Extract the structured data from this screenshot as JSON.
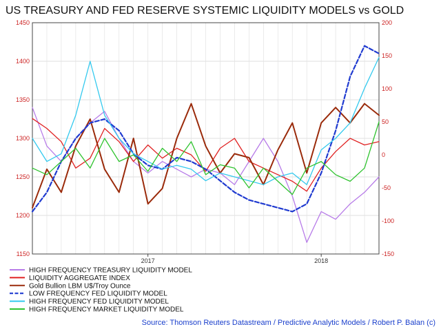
{
  "chart_data": {
    "type": "line",
    "title": "US TREASURY AND FED RESERVE SYSTEMIC LIQUIDITY MODELS vs GOLD",
    "source": "Source: Thomson Reuters Datastream / Predictive Analytic Models  / Robert P. Balan (c)",
    "x_range": [
      "2016-05",
      "2018-05"
    ],
    "x_ticks": [
      {
        "label": "2017",
        "date": "2017-01"
      },
      {
        "label": "2018",
        "date": "2018-01"
      }
    ],
    "y_left": {
      "range": [
        1150,
        1450
      ],
      "ticks": [
        "1150",
        "1200",
        "1250",
        "1300",
        "1350",
        "1400",
        "1450"
      ],
      "color": "#cc2222"
    },
    "y_right": {
      "range": [
        -150,
        200
      ],
      "ticks": [
        "-150",
        "-100",
        "-50",
        "0",
        "50",
        "100",
        "150",
        "200"
      ],
      "color": "#cc2222"
    },
    "grid": true,
    "legend_position": "bottom-left",
    "series": [
      {
        "name": "HIGH FREQUENCY TREASURY LIQUIDITY MODEL",
        "color": "#b77be8",
        "dash": false,
        "width": 1.3,
        "axis": "left",
        "points": [
          [
            "2016-05",
            1340
          ],
          [
            "2016-06",
            1290
          ],
          [
            "2016-07",
            1270
          ],
          [
            "2016-08",
            1300
          ],
          [
            "2016-09",
            1320
          ],
          [
            "2016-10",
            1335
          ],
          [
            "2016-11",
            1300
          ],
          [
            "2016-12",
            1270
          ],
          [
            "2017-01",
            1255
          ],
          [
            "2017-02",
            1270
          ],
          [
            "2017-03",
            1260
          ],
          [
            "2017-04",
            1250
          ],
          [
            "2017-05",
            1260
          ],
          [
            "2017-06",
            1255
          ],
          [
            "2017-07",
            1240
          ],
          [
            "2017-08",
            1270
          ],
          [
            "2017-09",
            1300
          ],
          [
            "2017-10",
            1270
          ],
          [
            "2017-11",
            1225
          ],
          [
            "2017-12",
            1165
          ],
          [
            "2018-01",
            1205
          ],
          [
            "2018-02",
            1195
          ],
          [
            "2018-03",
            1215
          ],
          [
            "2018-04",
            1230
          ],
          [
            "2018-05",
            1250
          ]
        ]
      },
      {
        "name": "LIQUIDITY AGGREGATE INDEX",
        "color": "#e02020",
        "dash": false,
        "width": 1.3,
        "axis": "right",
        "points": [
          [
            "2016-05",
            55
          ],
          [
            "2016-06",
            40
          ],
          [
            "2016-07",
            20
          ],
          [
            "2016-08",
            -20
          ],
          [
            "2016-09",
            -5
          ],
          [
            "2016-10",
            40
          ],
          [
            "2016-11",
            20
          ],
          [
            "2016-12",
            -10
          ],
          [
            "2017-01",
            15
          ],
          [
            "2017-02",
            -5
          ],
          [
            "2017-03",
            10
          ],
          [
            "2017-04",
            0
          ],
          [
            "2017-05",
            -25
          ],
          [
            "2017-06",
            10
          ],
          [
            "2017-07",
            25
          ],
          [
            "2017-08",
            -10
          ],
          [
            "2017-09",
            -20
          ],
          [
            "2017-10",
            -30
          ],
          [
            "2017-11",
            -40
          ],
          [
            "2017-12",
            -55
          ],
          [
            "2018-01",
            -20
          ],
          [
            "2018-02",
            5
          ],
          [
            "2018-03",
            25
          ],
          [
            "2018-04",
            15
          ],
          [
            "2018-05",
            20
          ]
        ]
      },
      {
        "name": "Gold Bullion LBM U$/Troy Ounce",
        "color": "#9a2a0a",
        "dash": false,
        "width": 2,
        "axis": "left",
        "points": [
          [
            "2016-05",
            1210
          ],
          [
            "2016-06",
            1260
          ],
          [
            "2016-07",
            1230
          ],
          [
            "2016-08",
            1290
          ],
          [
            "2016-09",
            1325
          ],
          [
            "2016-10",
            1260
          ],
          [
            "2016-11",
            1230
          ],
          [
            "2016-12",
            1300
          ],
          [
            "2017-01",
            1215
          ],
          [
            "2017-02",
            1235
          ],
          [
            "2017-03",
            1300
          ],
          [
            "2017-04",
            1345
          ],
          [
            "2017-05",
            1290
          ],
          [
            "2017-06",
            1255
          ],
          [
            "2017-07",
            1280
          ],
          [
            "2017-08",
            1275
          ],
          [
            "2017-09",
            1240
          ],
          [
            "2017-10",
            1285
          ],
          [
            "2017-11",
            1320
          ],
          [
            "2017-12",
            1255
          ],
          [
            "2018-01",
            1320
          ],
          [
            "2018-02",
            1340
          ],
          [
            "2018-03",
            1320
          ],
          [
            "2018-04",
            1345
          ],
          [
            "2018-05",
            1330
          ]
        ]
      },
      {
        "name": "LOW FREQUENCY FED LIQUIDITY MODEL",
        "color": "#1f3ad0",
        "dash": true,
        "width": 2.2,
        "axis": "left",
        "points": [
          [
            "2016-05",
            1205
          ],
          [
            "2016-06",
            1230
          ],
          [
            "2016-07",
            1270
          ],
          [
            "2016-08",
            1300
          ],
          [
            "2016-09",
            1320
          ],
          [
            "2016-10",
            1325
          ],
          [
            "2016-11",
            1310
          ],
          [
            "2016-12",
            1280
          ],
          [
            "2017-01",
            1265
          ],
          [
            "2017-02",
            1260
          ],
          [
            "2017-03",
            1275
          ],
          [
            "2017-04",
            1270
          ],
          [
            "2017-05",
            1260
          ],
          [
            "2017-06",
            1245
          ],
          [
            "2017-07",
            1230
          ],
          [
            "2017-08",
            1220
          ],
          [
            "2017-09",
            1215
          ],
          [
            "2017-10",
            1210
          ],
          [
            "2017-11",
            1205
          ],
          [
            "2017-12",
            1215
          ],
          [
            "2018-01",
            1255
          ],
          [
            "2018-02",
            1310
          ],
          [
            "2018-03",
            1380
          ],
          [
            "2018-04",
            1420
          ],
          [
            "2018-05",
            1410
          ]
        ]
      },
      {
        "name": "HIGH FREQUENCY FED LIQUIDITY MODEL",
        "color": "#33c9ee",
        "dash": false,
        "width": 1.3,
        "axis": "left",
        "points": [
          [
            "2016-05",
            1300
          ],
          [
            "2016-06",
            1270
          ],
          [
            "2016-07",
            1280
          ],
          [
            "2016-08",
            1330
          ],
          [
            "2016-09",
            1400
          ],
          [
            "2016-10",
            1330
          ],
          [
            "2016-11",
            1300
          ],
          [
            "2016-12",
            1280
          ],
          [
            "2017-01",
            1270
          ],
          [
            "2017-02",
            1260
          ],
          [
            "2017-03",
            1265
          ],
          [
            "2017-04",
            1260
          ],
          [
            "2017-05",
            1245
          ],
          [
            "2017-06",
            1255
          ],
          [
            "2017-07",
            1250
          ],
          [
            "2017-08",
            1245
          ],
          [
            "2017-09",
            1240
          ],
          [
            "2017-10",
            1250
          ],
          [
            "2017-11",
            1255
          ],
          [
            "2017-12",
            1240
          ],
          [
            "2018-01",
            1285
          ],
          [
            "2018-02",
            1300
          ],
          [
            "2018-03",
            1320
          ],
          [
            "2018-04",
            1365
          ],
          [
            "2018-05",
            1405
          ]
        ]
      },
      {
        "name": "HIGH FREQUENCY MARKET LIQUIDITY MODEL",
        "color": "#2ec32e",
        "dash": false,
        "width": 1.3,
        "axis": "right",
        "points": [
          [
            "2016-05",
            -20
          ],
          [
            "2016-06",
            -30
          ],
          [
            "2016-07",
            -10
          ],
          [
            "2016-08",
            10
          ],
          [
            "2016-09",
            -20
          ],
          [
            "2016-10",
            25
          ],
          [
            "2016-11",
            -10
          ],
          [
            "2016-12",
            0
          ],
          [
            "2017-01",
            -25
          ],
          [
            "2017-02",
            10
          ],
          [
            "2017-03",
            -10
          ],
          [
            "2017-04",
            20
          ],
          [
            "2017-05",
            -30
          ],
          [
            "2017-06",
            -15
          ],
          [
            "2017-07",
            -20
          ],
          [
            "2017-08",
            -50
          ],
          [
            "2017-09",
            -20
          ],
          [
            "2017-10",
            -40
          ],
          [
            "2017-11",
            -60
          ],
          [
            "2017-12",
            -20
          ],
          [
            "2018-01",
            -10
          ],
          [
            "2018-02",
            -30
          ],
          [
            "2018-03",
            -40
          ],
          [
            "2018-04",
            -20
          ],
          [
            "2018-05",
            50
          ]
        ]
      }
    ]
  }
}
